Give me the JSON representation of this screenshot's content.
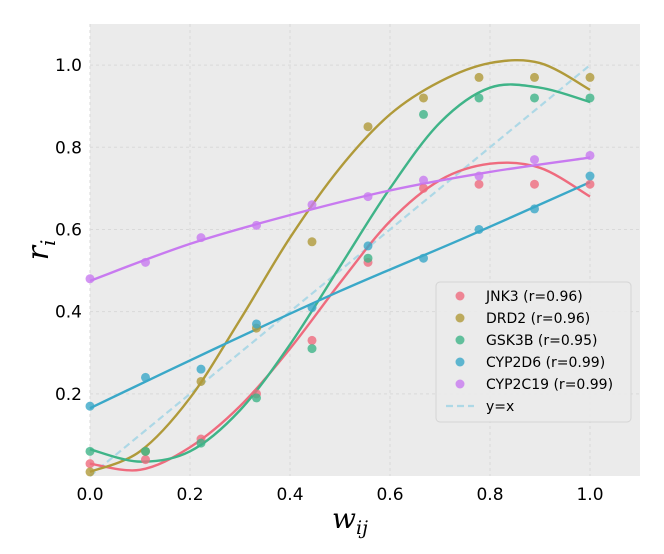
{
  "chart_data": {
    "type": "scatter",
    "title": "",
    "xlabel": "w_ij",
    "ylabel": "r_i",
    "xlabel_main": "w",
    "xlabel_sub": "ij",
    "ylabel_main": "r",
    "ylabel_sub": "i",
    "xlim": [
      0.0,
      1.1
    ],
    "ylim": [
      0.0,
      1.1
    ],
    "xticks": [
      0.0,
      0.2,
      0.4,
      0.6,
      0.8,
      1.0
    ],
    "yticks": [
      0.2,
      0.4,
      0.6,
      0.8,
      1.0
    ],
    "xtick_labels": [
      "0.0",
      "0.2",
      "0.4",
      "0.6",
      "0.8",
      "1.0"
    ],
    "ytick_labels": [
      "0.2",
      "0.4",
      "0.6",
      "0.8",
      "1.0"
    ],
    "grid": true,
    "legend_position": "lower-right",
    "x": [
      0.0,
      0.111,
      0.222,
      0.333,
      0.444,
      0.556,
      0.667,
      0.778,
      0.889,
      1.0
    ],
    "series": [
      {
        "name": "JNK3",
        "label": "JNK3 (r=0.96)",
        "color": "#ef6b7e",
        "values": [
          0.03,
          0.04,
          0.09,
          0.2,
          0.33,
          0.52,
          0.7,
          0.71,
          0.71,
          0.71
        ],
        "fit": [
          [
            0.0,
            0.03
          ],
          [
            0.1,
            0.015
          ],
          [
            0.2,
            0.07
          ],
          [
            0.3,
            0.17
          ],
          [
            0.4,
            0.31
          ],
          [
            0.5,
            0.47
          ],
          [
            0.6,
            0.62
          ],
          [
            0.7,
            0.72
          ],
          [
            0.8,
            0.76
          ],
          [
            0.9,
            0.75
          ],
          [
            1.0,
            0.68
          ]
        ]
      },
      {
        "name": "DRD2",
        "label": "DRD2 (r=0.96)",
        "color": "#b09a3a",
        "values": [
          0.01,
          0.06,
          0.23,
          0.36,
          0.57,
          0.85,
          0.92,
          0.97,
          0.97,
          0.97
        ],
        "fit": [
          [
            0.0,
            0.01
          ],
          [
            0.1,
            0.06
          ],
          [
            0.2,
            0.19
          ],
          [
            0.3,
            0.38
          ],
          [
            0.4,
            0.58
          ],
          [
            0.5,
            0.75
          ],
          [
            0.6,
            0.88
          ],
          [
            0.7,
            0.96
          ],
          [
            0.8,
            1.005
          ],
          [
            0.9,
            1.005
          ],
          [
            1.0,
            0.94
          ]
        ]
      },
      {
        "name": "GSK3B",
        "label": "GSK3B (r=0.95)",
        "color": "#3fb488",
        "values": [
          0.06,
          0.06,
          0.08,
          0.19,
          0.31,
          0.53,
          0.88,
          0.92,
          0.92,
          0.92
        ],
        "fit": [
          [
            0.0,
            0.065
          ],
          [
            0.1,
            0.035
          ],
          [
            0.2,
            0.06
          ],
          [
            0.3,
            0.16
          ],
          [
            0.4,
            0.32
          ],
          [
            0.5,
            0.51
          ],
          [
            0.6,
            0.7
          ],
          [
            0.7,
            0.86
          ],
          [
            0.8,
            0.945
          ],
          [
            0.9,
            0.945
          ],
          [
            1.0,
            0.91
          ]
        ]
      },
      {
        "name": "CYP2D6",
        "label": "CYP2D6 (r=0.99)",
        "color": "#3aa8c8",
        "values": [
          0.17,
          0.24,
          0.26,
          0.37,
          0.41,
          0.56,
          0.53,
          0.6,
          0.65,
          0.73
        ],
        "fit": [
          [
            0.0,
            0.165
          ],
          [
            0.25,
            0.31
          ],
          [
            0.5,
            0.45
          ],
          [
            0.75,
            0.58
          ],
          [
            1.0,
            0.715
          ]
        ]
      },
      {
        "name": "CYP2C19",
        "label": "CYP2C19 (r=0.99)",
        "color": "#c87af0",
        "values": [
          0.48,
          0.52,
          0.58,
          0.61,
          0.66,
          0.68,
          0.72,
          0.73,
          0.77,
          0.78
        ],
        "fit": [
          [
            0.0,
            0.475
          ],
          [
            0.2,
            0.565
          ],
          [
            0.4,
            0.635
          ],
          [
            0.6,
            0.695
          ],
          [
            0.8,
            0.74
          ],
          [
            1.0,
            0.775
          ]
        ]
      }
    ],
    "reference_line": {
      "label": "y=x",
      "color": "#add8e6",
      "points": [
        [
          0.0,
          0.0
        ],
        [
          1.0,
          1.0
        ]
      ]
    }
  }
}
